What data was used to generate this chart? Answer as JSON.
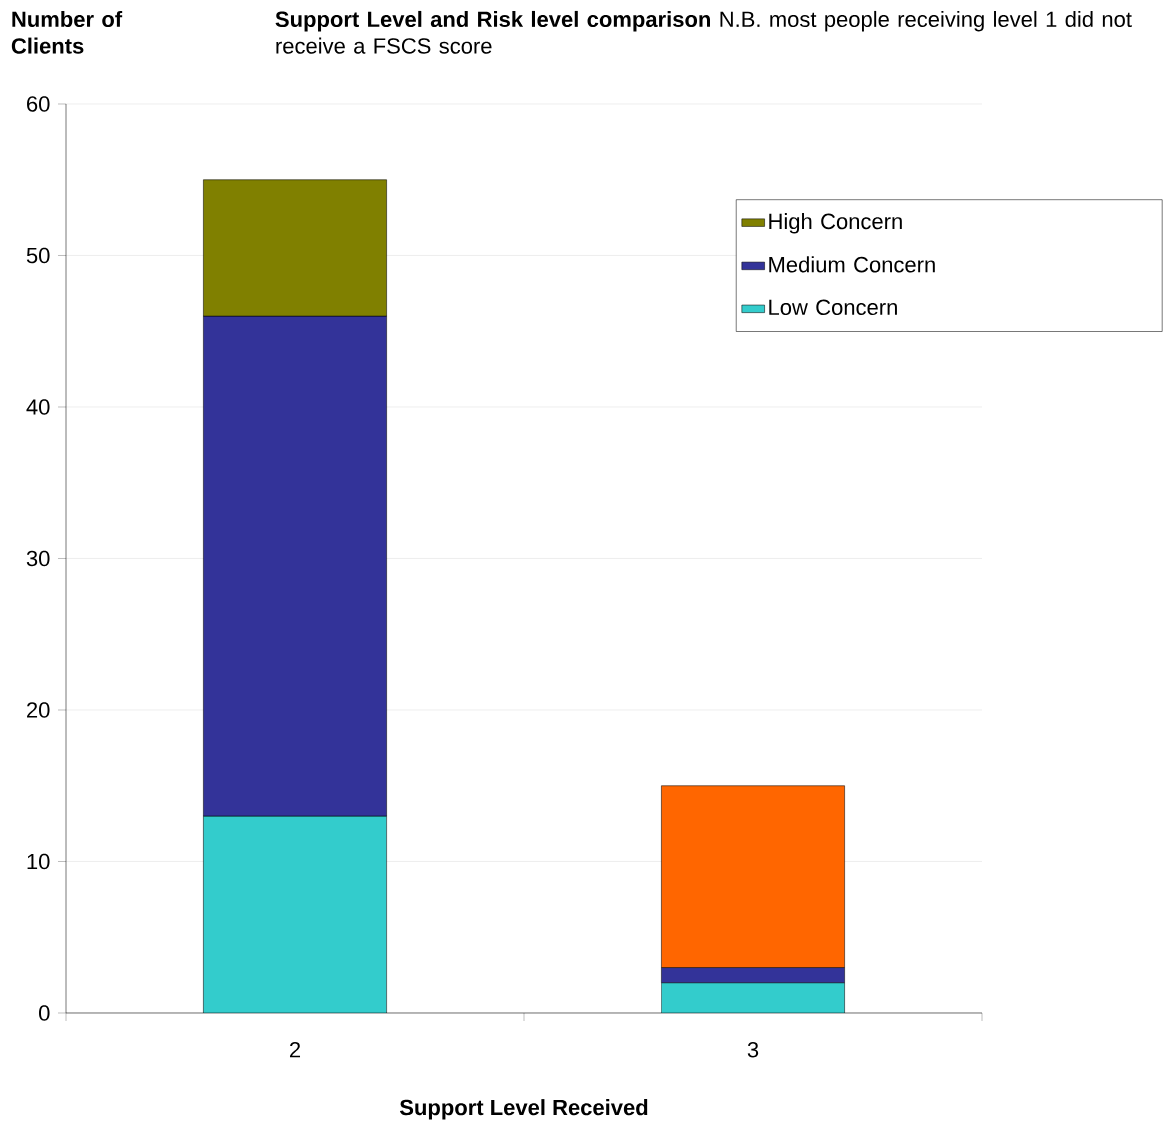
{
  "chart_data": {
    "type": "bar",
    "stacked": true,
    "title": "**Support Level and Risk level comparison** N.B. most people receiving level 1 did not receive a FSCS score",
    "ylabel": "Number of Clients",
    "xlabel": "Support Level Received",
    "categories": [
      "2",
      "3"
    ],
    "ylim": [
      0,
      60
    ],
    "yticks": [
      0,
      10,
      20,
      30,
      40,
      50,
      60
    ],
    "grid": "y",
    "legend": "top right",
    "series": [
      {
        "name": "Low Concern",
        "color": "#33cccc",
        "values": [
          13,
          2
        ]
      },
      {
        "name": "Medium Concern",
        "color": "#333399",
        "values": [
          33,
          1
        ]
      },
      {
        "name": "High Concern",
        "color": "#808000",
        "colors": [
          "#808000",
          "#ff6600"
        ],
        "values": [
          9,
          12
        ]
      }
    ]
  }
}
